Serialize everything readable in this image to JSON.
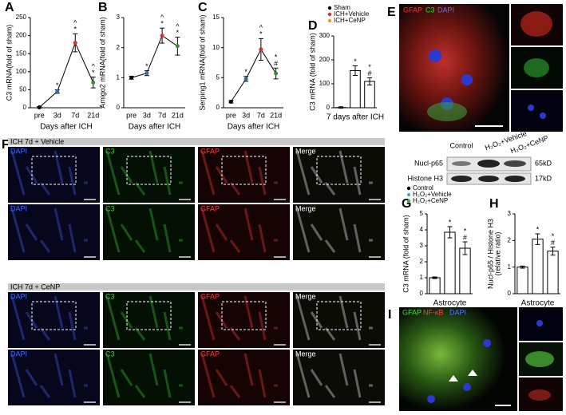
{
  "chart_data": [
    {
      "type": "line",
      "panel": "A",
      "categories": [
        "pre",
        "3d",
        "7d",
        "21d"
      ],
      "values": [
        1,
        45,
        180,
        70
      ],
      "errors": [
        2,
        5,
        25,
        15
      ],
      "point_colors": [
        "#000000",
        "#2e6fb0",
        "#d0342c",
        "#3a8a3a"
      ],
      "color": "#000000",
      "annotations": [
        [],
        [
          "*"
        ],
        [
          "^",
          "*"
        ],
        [
          "^",
          "*"
        ]
      ],
      "ylabel": "C3 mRNA(fold of sham)",
      "xlabel": "Days after ICH",
      "ylim": [
        0,
        250
      ],
      "yticks": [
        0,
        50,
        100,
        150,
        200,
        250
      ]
    },
    {
      "type": "line",
      "panel": "B",
      "categories": [
        "pre",
        "3d",
        "7d",
        "21d"
      ],
      "values": [
        1,
        1.15,
        2.4,
        2.05
      ],
      "errors": [
        0.05,
        0.08,
        0.25,
        0.3
      ],
      "point_colors": [
        "#000000",
        "#2e6fb0",
        "#d0342c",
        "#3a8a3a"
      ],
      "color": "#000000",
      "annotations": [
        [],
        [
          "*"
        ],
        [
          "^",
          "*"
        ],
        [
          "^",
          "*"
        ]
      ],
      "ylabel": "Amigo2 mRNA(fold of sham)",
      "xlabel": "Days after ICH",
      "ylim": [
        0,
        3
      ],
      "yticks": [
        0,
        1,
        2,
        3
      ]
    },
    {
      "type": "line",
      "panel": "C",
      "categories": [
        "pre",
        "3d",
        "7d",
        "21d"
      ],
      "values": [
        1,
        4.8,
        9.7,
        5.7
      ],
      "errors": [
        0.2,
        0.4,
        1.8,
        0.9
      ],
      "point_colors": [
        "#000000",
        "#2e6fb0",
        "#d0342c",
        "#3a8a3a"
      ],
      "color": "#000000",
      "annotations": [
        [],
        [
          "*"
        ],
        [
          "^",
          "*"
        ],
        [
          "*",
          "#"
        ]
      ],
      "ylabel": "Serping1 mRNA(fold of sham)",
      "xlabel": "Days after ICH",
      "ylim": [
        0,
        15
      ],
      "yticks": [
        0,
        5,
        10,
        15
      ]
    },
    {
      "type": "bar",
      "panel": "D",
      "legend": true,
      "series": [
        {
          "name": "Sham",
          "color": "#000000",
          "values": [
            1
          ],
          "errors": [
            3
          ],
          "annotations": [
            []
          ]
        },
        {
          "name": "ICH+Vehicle",
          "color": "#d0342c",
          "values": [
            155
          ],
          "errors": [
            20
          ],
          "annotations": [
            [
              "*"
            ]
          ]
        },
        {
          "name": "ICH+CeNP",
          "color": "#e8a020",
          "values": [
            110
          ],
          "errors": [
            15
          ],
          "annotations": [
            [
              "*",
              "#"
            ]
          ]
        }
      ],
      "ylabel": "C3 mRNA (fold of sham)",
      "xlabel": "7 days after ICH",
      "ylim": [
        0,
        300
      ],
      "yticks": [
        0,
        100,
        200,
        300
      ]
    },
    {
      "type": "bar",
      "panel": "G",
      "legend": true,
      "series": [
        {
          "name": "Control",
          "color": "#000000",
          "values": [
            1
          ],
          "errors": [
            0.05
          ],
          "annotations": [
            []
          ]
        },
        {
          "name": "H₂O₂+Vehicle",
          "color": "#4aa8d8",
          "values": [
            3.85
          ],
          "errors": [
            0.35
          ],
          "annotations": [
            [
              "*"
            ]
          ]
        },
        {
          "name": "H₂O₂+CeNP",
          "color": "#3cb043",
          "values": [
            2.85
          ],
          "errors": [
            0.4
          ],
          "annotations": [
            [
              "*",
              "#"
            ]
          ]
        }
      ],
      "ylabel": "C3 mRNA (fold of sham)",
      "xlabel": "Astrocyte",
      "ylim": [
        0,
        5
      ],
      "yticks": [
        0,
        1,
        2,
        3,
        4,
        5
      ]
    },
    {
      "type": "bar",
      "panel": "H",
      "legend": false,
      "series": [
        {
          "color": "#000000",
          "values": [
            1
          ],
          "errors": [
            0.04
          ],
          "annotations": [
            []
          ]
        },
        {
          "color": "#4aa8d8",
          "values": [
            2.05
          ],
          "errors": [
            0.2
          ],
          "annotations": [
            [
              "*"
            ]
          ]
        },
        {
          "color": "#3cb043",
          "values": [
            1.6
          ],
          "errors": [
            0.15
          ],
          "annotations": [
            [
              "*",
              "#"
            ]
          ]
        }
      ],
      "ylabel": [
        "Nucl-p65 / Histone H3",
        "(relative ratio)"
      ],
      "xlabel": "Astrocyte",
      "ylim": [
        0,
        3
      ],
      "yticks": [
        0,
        1,
        2,
        3
      ]
    }
  ],
  "panel_e": {
    "letter": "E",
    "labels": [
      "GFAP",
      "C3",
      "DAPI"
    ]
  },
  "panel_f": {
    "letter": "F",
    "groups": [
      "ICH 7d + Vehicle",
      "ICH 7d + CeNP"
    ],
    "channels": [
      "DAPI",
      "C3",
      "GFAP",
      "Merge"
    ]
  },
  "blot": {
    "lanes": [
      "Control",
      "H₂O₂+Vehicle",
      "H₂O₂+CeNP"
    ],
    "bands": [
      {
        "name": "Nucl-p65",
        "size": "65kD"
      },
      {
        "name": "Histone H3",
        "size": "17kD"
      }
    ]
  },
  "panel_i": {
    "letter": "I",
    "labels": [
      "GFAP",
      "NF-κB",
      "DAPI"
    ]
  }
}
